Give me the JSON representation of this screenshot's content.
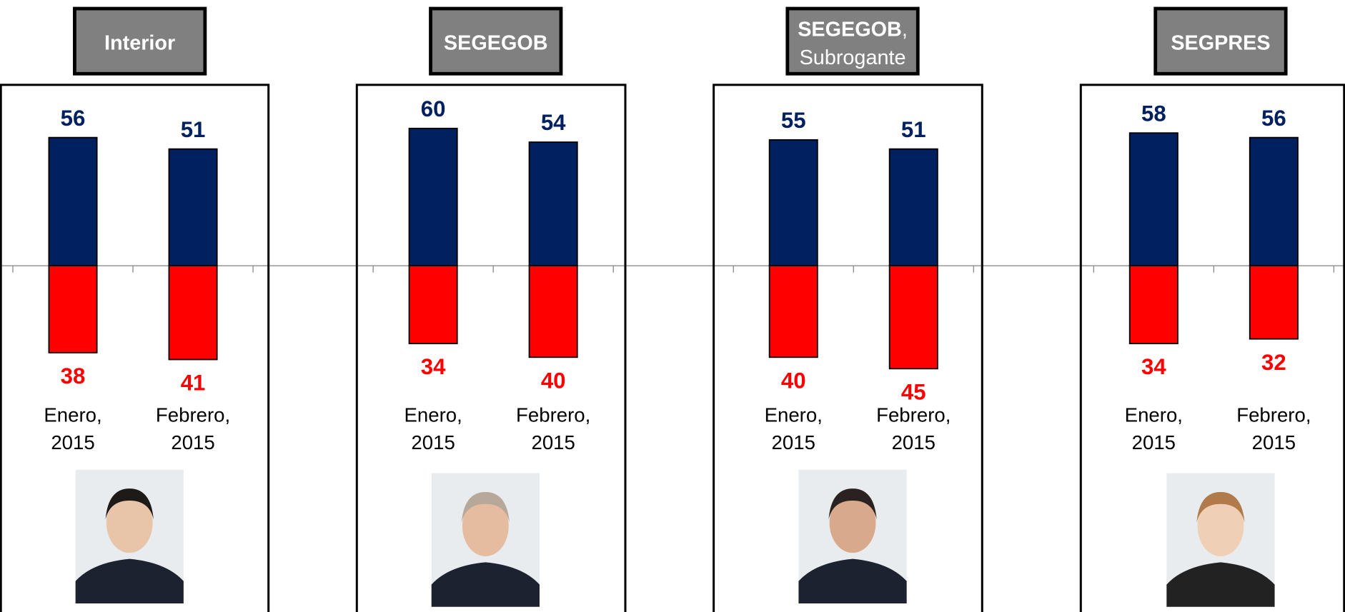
{
  "chart_data": [
    {
      "type": "diverging-bar",
      "title": "Interior",
      "categories": [
        "Enero, 2015",
        "Febrero, 2015"
      ],
      "series": [
        {
          "color": "#002060",
          "values": [
            56,
            51
          ]
        },
        {
          "color": "#ff0000",
          "values": [
            38,
            41
          ]
        }
      ]
    },
    {
      "type": "diverging-bar",
      "title": "SEGEGOB",
      "categories": [
        "Enero, 2015",
        "Febrero, 2015"
      ],
      "series": [
        {
          "color": "#002060",
          "values": [
            60,
            54
          ]
        },
        {
          "color": "#ff0000",
          "values": [
            34,
            40
          ]
        }
      ]
    },
    {
      "type": "diverging-bar",
      "title": "SEGEGOB, Subrogante",
      "categories": [
        "Enero, 2015",
        "Febrero, 2015"
      ],
      "series": [
        {
          "color": "#002060",
          "values": [
            55,
            51
          ]
        },
        {
          "color": "#ff0000",
          "values": [
            40,
            45
          ]
        }
      ]
    },
    {
      "type": "diverging-bar",
      "title": "SEGPRES",
      "categories": [
        "Enero, 2015",
        "Febrero, 2015"
      ],
      "series": [
        {
          "color": "#002060",
          "values": [
            58,
            56
          ]
        },
        {
          "color": "#ff0000",
          "values": [
            34,
            32
          ]
        }
      ]
    }
  ]
}
